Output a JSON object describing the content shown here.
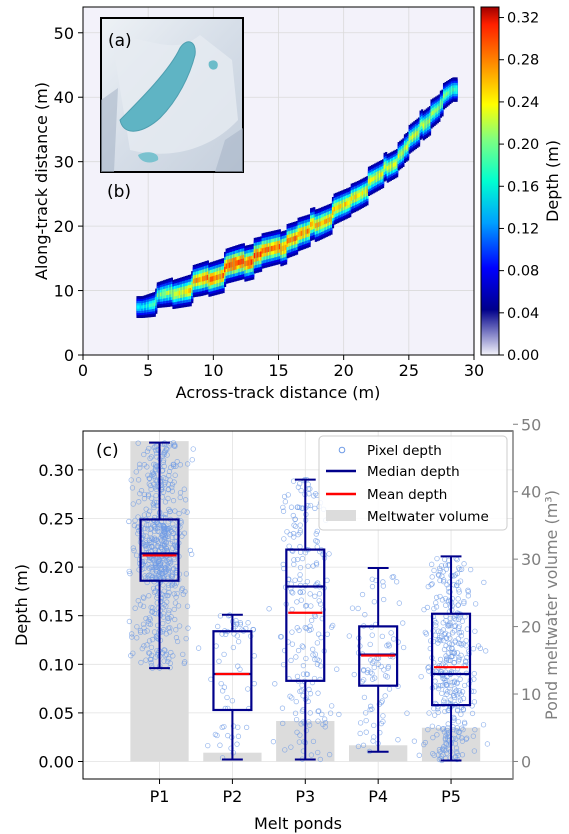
{
  "chart_data": [
    {
      "type": "heatmap",
      "panel_label": "(b)",
      "inset_label": "(a)",
      "xlabel": "Across-track distance (m)",
      "ylabel": "Along-track distance (m)",
      "xlim": [
        0,
        30
      ],
      "ylim": [
        0,
        54
      ],
      "xticks": [
        0,
        5,
        10,
        15,
        20,
        25,
        30
      ],
      "yticks": [
        0,
        10,
        20,
        30,
        40,
        50
      ],
      "grid": true,
      "colorbar": {
        "label": "Depth (m)",
        "range": [
          0,
          0.33
        ],
        "ticks": [
          "0.00",
          "0.04",
          "0.08",
          "0.12",
          "0.16",
          "0.20",
          "0.24",
          "0.28",
          "0.32"
        ],
        "colormap": "jet"
      },
      "pond_track": [
        {
          "x": 4.5,
          "y": 8.0,
          "half_width": 1.7,
          "depth": 0.12
        },
        {
          "x": 6.5,
          "y": 9.5,
          "half_width": 2.2,
          "depth": 0.18
        },
        {
          "x": 9.0,
          "y": 11.5,
          "half_width": 2.6,
          "depth": 0.24
        },
        {
          "x": 12.0,
          "y": 14.5,
          "half_width": 2.8,
          "depth": 0.27
        },
        {
          "x": 15.0,
          "y": 17.0,
          "half_width": 2.7,
          "depth": 0.25
        },
        {
          "x": 18.0,
          "y": 20.5,
          "half_width": 2.5,
          "depth": 0.23
        },
        {
          "x": 21.0,
          "y": 25.0,
          "half_width": 2.3,
          "depth": 0.21
        },
        {
          "x": 24.0,
          "y": 30.5,
          "half_width": 2.2,
          "depth": 0.19
        },
        {
          "x": 26.5,
          "y": 37.0,
          "half_width": 2.3,
          "depth": 0.18
        },
        {
          "x": 28.3,
          "y": 41.5,
          "half_width": 1.9,
          "depth": 0.15
        }
      ]
    },
    {
      "type": "box",
      "panel_label": "(c)",
      "xlabel": "Melt ponds",
      "ylabel": "Depth (m)",
      "y2label": "Pond meltwater volume (m³)",
      "categories": [
        "P1",
        "P2",
        "P3",
        "P4",
        "P5"
      ],
      "ylim": [
        -0.018,
        0.34
      ],
      "yticks": [
        "0.00",
        "0.05",
        "0.10",
        "0.15",
        "0.20",
        "0.25",
        "0.30"
      ],
      "y2lim": [
        -2.6,
        49.0
      ],
      "y2ticks": [
        "0",
        "10",
        "20",
        "30",
        "40",
        "50"
      ],
      "grid": true,
      "legend_position": "top-right",
      "legend": [
        "Pixel depth",
        "Median depth",
        "Mean depth",
        "Meltwater volume"
      ],
      "series": [
        {
          "name": "Median depth",
          "values": [
            0.214,
            0.09,
            0.18,
            0.11,
            0.09
          ]
        },
        {
          "name": "Mean depth",
          "values": [
            0.212,
            0.09,
            0.153,
            0.109,
            0.097
          ]
        },
        {
          "name": "Meltwater volume",
          "values": [
            47.5,
            1.3,
            6.0,
            2.4,
            5.0
          ]
        }
      ],
      "boxes": [
        {
          "category": "P1",
          "whisker_low": 0.096,
          "q1": 0.186,
          "median": 0.214,
          "q3": 0.249,
          "whisker_high": 0.328,
          "mean": 0.212
        },
        {
          "category": "P2",
          "whisker_low": 0.002,
          "q1": 0.053,
          "median": 0.09,
          "q3": 0.134,
          "whisker_high": 0.151,
          "mean": 0.09
        },
        {
          "category": "P3",
          "whisker_low": 0.002,
          "q1": 0.083,
          "median": 0.18,
          "q3": 0.218,
          "whisker_high": 0.29,
          "mean": 0.153
        },
        {
          "category": "P4",
          "whisker_low": 0.01,
          "q1": 0.078,
          "median": 0.11,
          "q3": 0.139,
          "whisker_high": 0.199,
          "mean": 0.109
        },
        {
          "category": "P5",
          "whisker_low": 0.001,
          "q1": 0.058,
          "median": 0.09,
          "q3": 0.152,
          "whisker_high": 0.211,
          "mean": 0.097
        }
      ],
      "pixel_depth_points_per_pond": [
        600,
        60,
        220,
        90,
        380
      ],
      "colors": {
        "points": "#6f9be6",
        "median": "#00008b",
        "mean": "#ff0000",
        "bars": "#dcdcdc",
        "right_axis": "#808080"
      }
    }
  ]
}
